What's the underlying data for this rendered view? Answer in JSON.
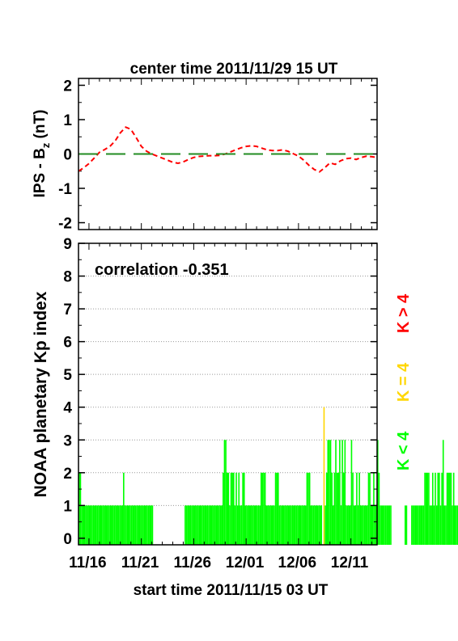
{
  "top_title": "center time 2011/11/29 15 UT",
  "bottom_xlabel": "start time 2011/11/15 03 UT",
  "legend": [
    {
      "text": "K < 4",
      "color": "#00ff00"
    },
    {
      "text": "K = 4",
      "color": "#ffd700"
    },
    {
      "text": "K > 4",
      "color": "#ff0000"
    }
  ],
  "chart_data": [
    {
      "type": "line",
      "title": "center time 2011/11/29 15 UT",
      "ylabel_main": "IPS - B",
      "ylabel_sub": "z",
      "ylabel_unit": "(nT)",
      "ylim": [
        -2.2,
        2.2
      ],
      "yticks": [
        -2,
        -1,
        0,
        1,
        2
      ],
      "xlim_days": [
        0,
        28.5
      ],
      "series": [
        {
          "color": "#ff0000",
          "style": "dashed",
          "x": [
            0,
            0.5,
            1,
            1.5,
            2,
            2.5,
            3,
            3.5,
            4,
            4.5,
            5,
            5.5,
            6,
            6.5,
            7,
            7.5,
            8,
            8.5,
            9,
            9.5,
            10,
            10.5,
            11,
            11.5,
            12,
            12.5,
            13,
            13.5,
            14,
            14.5,
            15,
            15.5,
            16,
            16.5,
            17,
            17.5,
            18,
            18.5,
            19,
            19.5,
            20,
            20.5,
            21,
            21.5,
            22,
            22.5,
            23,
            23.5,
            24,
            24.5,
            25,
            25.5,
            26,
            26.5,
            27,
            27.5,
            28,
            28.5
          ],
          "y": [
            -0.5,
            -0.4,
            -0.28,
            -0.12,
            0.05,
            0.13,
            0.22,
            0.38,
            0.62,
            0.78,
            0.72,
            0.48,
            0.22,
            0.08,
            0,
            -0.06,
            -0.12,
            -0.18,
            -0.24,
            -0.27,
            -0.23,
            -0.16,
            -0.1,
            -0.07,
            -0.06,
            -0.05,
            -0.05,
            -0.04,
            0,
            0.06,
            0.12,
            0.18,
            0.22,
            0.24,
            0.22,
            0.17,
            0.12,
            0.1,
            0.1,
            0.12,
            0.08,
            0.01,
            -0.06,
            -0.18,
            -0.33,
            -0.45,
            -0.52,
            -0.4,
            -0.26,
            -0.3,
            -0.2,
            -0.14,
            -0.12,
            -0.16,
            -0.1,
            -0.06,
            -0.08,
            -0.1
          ]
        },
        {
          "color": "#228b22",
          "style": "long-dash",
          "x": [
            0,
            28.5
          ],
          "y": [
            0,
            0
          ]
        }
      ]
    },
    {
      "type": "bar",
      "annotation": "correlation -0.351",
      "ylabel": "NOAA planetary Kp index",
      "xlabel": "start time 2011/11/15 03 UT",
      "ylim": [
        -0.2,
        9
      ],
      "yticks": [
        0,
        1,
        2,
        3,
        4,
        5,
        6,
        7,
        8,
        9
      ],
      "grid": true,
      "xlim_days": [
        0,
        28.5
      ],
      "x_tick_labels": [
        "11/16",
        "11/21",
        "11/26",
        "12/01",
        "12/06",
        "12/11"
      ],
      "x_tick_days": [
        0.875,
        5.875,
        10.875,
        15.875,
        20.875,
        25.875
      ],
      "bar_width_days": 0.125,
      "kp_values": [
        2,
        2,
        1,
        1,
        1,
        1,
        1,
        1,
        1,
        1,
        1,
        1,
        1,
        1,
        1,
        1,
        1,
        1,
        1,
        1,
        1,
        1,
        1,
        1,
        1,
        1,
        1,
        1,
        1,
        1,
        1,
        1,
        1,
        1,
        2,
        1,
        1,
        1,
        1,
        1,
        1,
        1,
        1,
        1,
        1,
        1,
        1,
        1,
        1,
        1,
        1,
        1,
        1,
        1,
        1,
        1,
        1,
        0,
        0,
        0,
        0,
        0,
        0,
        0,
        0,
        0,
        0,
        0,
        0,
        0,
        0,
        0,
        0,
        0,
        0,
        0,
        0,
        0,
        0,
        0,
        0,
        1,
        1,
        1,
        1,
        1,
        1,
        1,
        1,
        1,
        1,
        1,
        1,
        1,
        1,
        1,
        1,
        1,
        1,
        1,
        1,
        1,
        1,
        1,
        1,
        1,
        1,
        1,
        1,
        1,
        2,
        3,
        3,
        2,
        2,
        1,
        2,
        2,
        2,
        1,
        2,
        1,
        2,
        1,
        1,
        2,
        2,
        1,
        1,
        1,
        1,
        1,
        1,
        1,
        1,
        1,
        1,
        1,
        1,
        2,
        2,
        2,
        2,
        1,
        1,
        1,
        1,
        1,
        1,
        1,
        2,
        2,
        2,
        1,
        1,
        1,
        1,
        1,
        1,
        1,
        1,
        1,
        1,
        1,
        1,
        1,
        1,
        1,
        1,
        1,
        1,
        1,
        1,
        1,
        2,
        2,
        2,
        1,
        1,
        1,
        1,
        1,
        1,
        1,
        1,
        1,
        0,
        4,
        1,
        2,
        3,
        3,
        3,
        2,
        1,
        2,
        3,
        2,
        2,
        3,
        1,
        3,
        2,
        3,
        1,
        1,
        1,
        1,
        3,
        2,
        1,
        1,
        2,
        1,
        2,
        1,
        1,
        1,
        1,
        1,
        1,
        2,
        2,
        1,
        1,
        2,
        1,
        1,
        3,
        2,
        1,
        1,
        1,
        1,
        1,
        1,
        1,
        1,
        1,
        0,
        0,
        0,
        0,
        0,
        0,
        0,
        0,
        0,
        0,
        1,
        1,
        0,
        0,
        0,
        1,
        1,
        1,
        1,
        1,
        1,
        1,
        1,
        1,
        1,
        2,
        2,
        2,
        2,
        1,
        1,
        2,
        1,
        2,
        1,
        2,
        2,
        1,
        2,
        3,
        1,
        1,
        2,
        2,
        2,
        2,
        1,
        2,
        1,
        1,
        1,
        1,
        1,
        1,
        1,
        1,
        1,
        1,
        1,
        1,
        1
      ]
    }
  ]
}
